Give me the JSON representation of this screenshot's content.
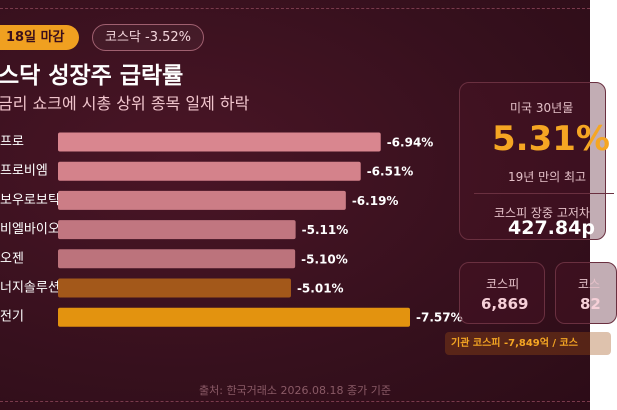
{
  "header": {
    "badge": "18일 마감",
    "index_change": "코스닥 -3.52%"
  },
  "chart_data": {
    "type": "bar",
    "orientation": "horizontal",
    "title": "스닥 성장주 급락률",
    "subtitle": "금리 쇼크에 시총 상위 종목 일제 하락",
    "categories": [
      "프로",
      "프로비엠",
      "보우로보틱스",
      "비엘바이오",
      "오젠",
      "너지솔루션",
      "전기"
    ],
    "values": [
      -6.94,
      -6.51,
      -6.19,
      -5.11,
      -5.1,
      -5.01,
      -7.57
    ],
    "value_labels": [
      "-6.94%",
      "-6.51%",
      "-6.19%",
      "-5.11%",
      "-5.10%",
      "-5.01%",
      "-7.57%"
    ],
    "colors": [
      "#d9868f",
      "#d4828b",
      "#cc7d86",
      "#c17680",
      "#bc737c",
      "#a3581a",
      "#e3930f"
    ]
  },
  "side_panel": {
    "rate_label": "미국 30년물",
    "rate_value": "5.31%",
    "rate_note": "19년 만의 최고",
    "range_label": "코스피 장중 고저차",
    "range_value": "427.84p",
    "cards": [
      {
        "label": "코스피",
        "value": "6,869"
      },
      {
        "label": "코스",
        "value": "82"
      }
    ],
    "flow": "기관 코스피 -7,849억 / 코스"
  },
  "footer": "출처: 한국거래소 2026.08.18 종가 기준"
}
